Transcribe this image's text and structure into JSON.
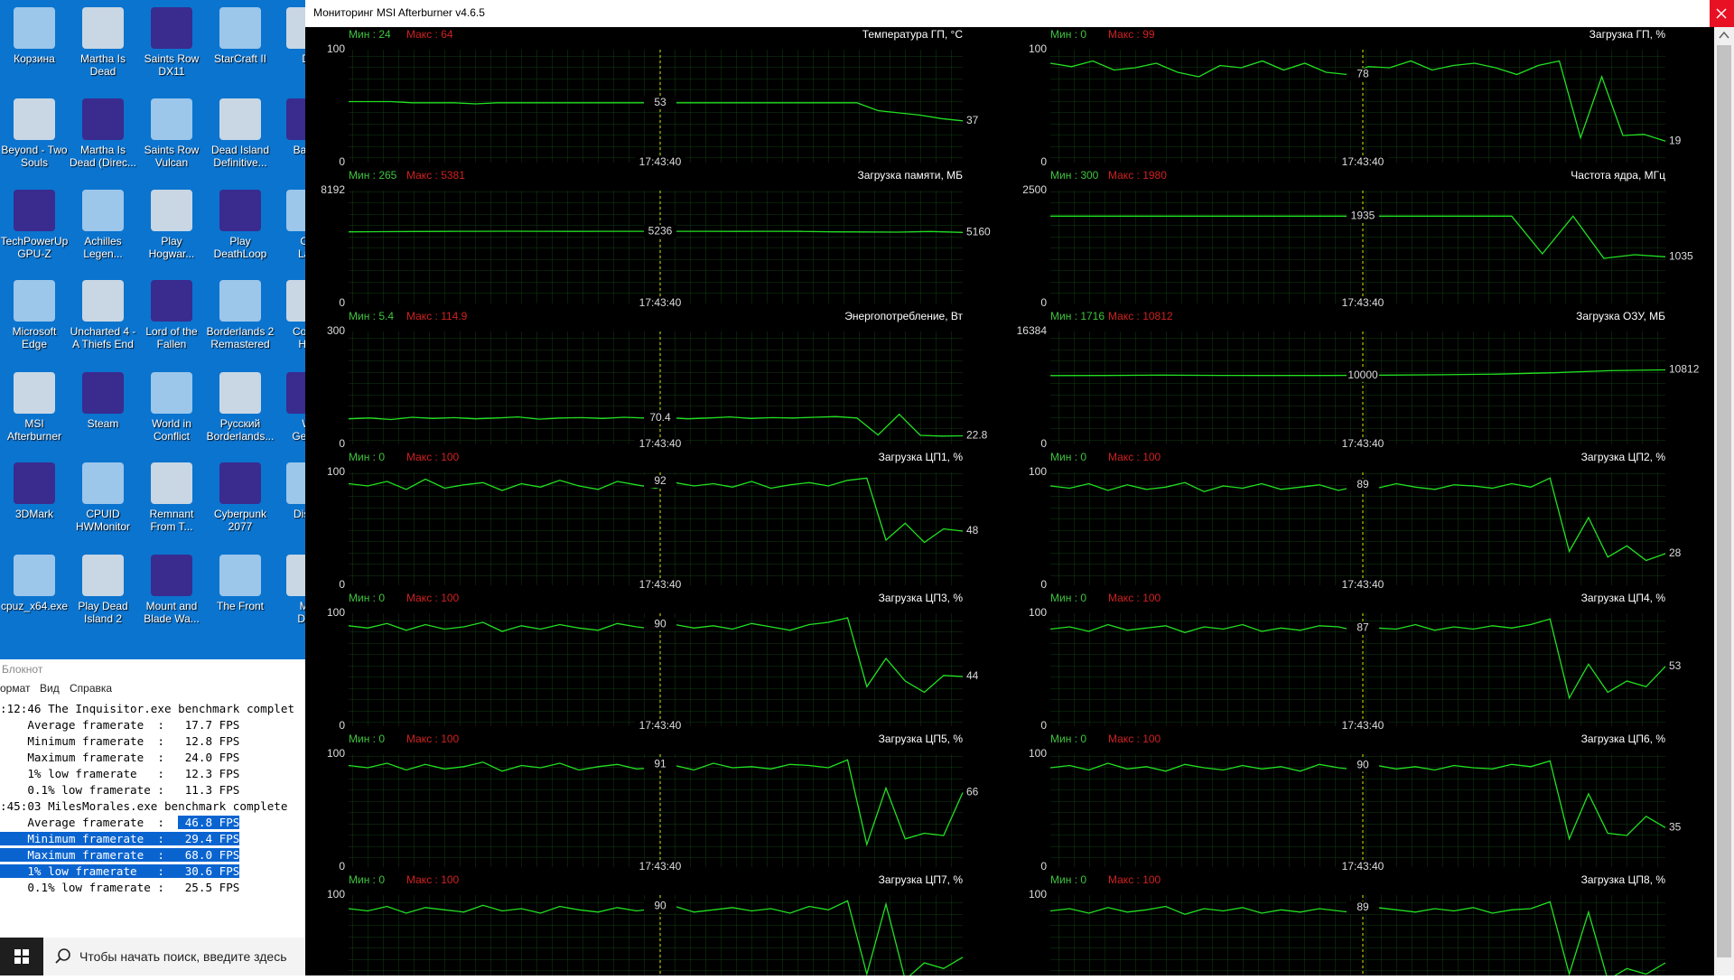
{
  "desktop": {
    "icons": [
      {
        "label": "Корзина"
      },
      {
        "label": "Beyond - Two\nSouls"
      },
      {
        "label": "TechPowerUp\nGPU-Z"
      },
      {
        "label": "Microsoft\nEdge"
      },
      {
        "label": "MSI\nAfterburner"
      },
      {
        "label": "3DMark"
      },
      {
        "label": "cpuz_x64.exe"
      },
      {
        "label": "Martha Is\nDead"
      },
      {
        "label": "Martha Is\nDead (Direc..."
      },
      {
        "label": "Achilles\nLegen..."
      },
      {
        "label": "Uncharted 4 -\nA Thiefs End"
      },
      {
        "label": "Steam"
      },
      {
        "label": "CPUID\nHWMonitor"
      },
      {
        "label": "Play Dead\nIsland 2"
      },
      {
        "label": "Saints Row\nDX11"
      },
      {
        "label": "Saints Row\nVulcan"
      },
      {
        "label": "Play\nHogwar..."
      },
      {
        "label": "Lord of the\nFallen"
      },
      {
        "label": "World in\nConflict"
      },
      {
        "label": "Remnant\nFrom T..."
      },
      {
        "label": "Mount and\nBlade Wa..."
      },
      {
        "label": "StarCraft II"
      },
      {
        "label": "Dead Island\nDefinitive..."
      },
      {
        "label": "Play\nDeathLoop"
      },
      {
        "label": "Borderlands 2\nRemastered"
      },
      {
        "label": "Русский\nBorderlands..."
      },
      {
        "label": "Cyberpunk\n2077"
      },
      {
        "label": "The Front"
      },
      {
        "label": "Di"
      },
      {
        "label": "Baldu"
      },
      {
        "label": "Co\nLau"
      },
      {
        "label": "Comp\nHer"
      },
      {
        "label": "W\nGener"
      },
      {
        "label": "Disint"
      },
      {
        "label": "Ma\nDefi"
      }
    ]
  },
  "notepad": {
    "title": "Блокнот",
    "menu": [
      "ормат",
      "Вид",
      "Справка"
    ],
    "lines": [
      [
        {
          "text": ":12:46 The Inquisitor.exe benchmark complet",
          "selected": false
        }
      ],
      [
        {
          "text": "    Average framerate  :   17.7 FPS",
          "selected": false
        }
      ],
      [
        {
          "text": "    Minimum framerate  :   12.8 FPS",
          "selected": false
        }
      ],
      [
        {
          "text": "    Maximum framerate  :   24.0 FPS",
          "selected": false
        }
      ],
      [
        {
          "text": "    1% low framerate   :   12.3 FPS",
          "selected": false
        }
      ],
      [
        {
          "text": "    0.1% low framerate :   11.3 FPS",
          "selected": false
        }
      ],
      [
        {
          "text": ":45:03 MilesMorales.exe benchmark complete",
          "selected": false
        }
      ],
      [
        {
          "text": "    Average framerate  :  ",
          "selected": false
        },
        {
          "text": " 46.8 FPS",
          "selected": true
        }
      ],
      [
        {
          "text": "    Minimum framerate  :   29.4 FPS",
          "selected": true
        }
      ],
      [
        {
          "text": "    Maximum framerate  :   68.0 FPS",
          "selected": true
        }
      ],
      [
        {
          "text": "    1% low framerate   :   30.6 FPS",
          "selected": true
        }
      ],
      [
        {
          "text": "    0.1% low framerate :   25.5 FPS",
          "selected": false
        }
      ]
    ]
  },
  "taskbar": {
    "search": "Чтобы начать поиск, введите здесь"
  },
  "afterburner": {
    "title": "Мониторинг MSI Afterburner v4.6.5",
    "graphs": [
      {
        "title": "Температура ГП, °C",
        "min": "Мин : 24",
        "max": "Макс : 64",
        "ylim": [
          0,
          100
        ],
        "time": "17:43:40",
        "cursor_value": 53,
        "current": 37,
        "values": [
          54,
          54,
          54,
          53,
          53,
          53,
          52,
          53,
          53,
          53,
          53,
          53,
          53,
          53,
          53,
          53,
          53,
          53,
          53,
          53,
          53,
          53,
          53,
          53,
          53,
          46,
          44,
          42,
          39,
          37
        ]
      },
      {
        "title": "Загрузка ГП, %",
        "min": "Мин : 0",
        "max": "Макс : 99",
        "ylim": [
          0,
          100
        ],
        "time": "17:43:40",
        "cursor_value": 78,
        "current": 19,
        "values": [
          88,
          85,
          90,
          82,
          84,
          88,
          80,
          76,
          86,
          84,
          90,
          82,
          88,
          80,
          78,
          85,
          84,
          90,
          82,
          86,
          88,
          84,
          78,
          86,
          90,
          22,
          76,
          24,
          25,
          19
        ]
      },
      {
        "title": "Загрузка памяти, МБ",
        "min": "Мин : 265",
        "max": "Макс : 5381",
        "ylim": [
          0,
          8192
        ],
        "time": "17:43:40",
        "cursor_value": 5236,
        "current": 5160,
        "values": [
          5200,
          5210,
          5220,
          5230,
          5236,
          5240,
          5236,
          5230,
          5236,
          5236,
          5236,
          5236,
          5230,
          5236,
          5230,
          5200,
          5190,
          5180,
          5220,
          5160
        ]
      },
      {
        "title": "Частота ядра, МГц",
        "min": "Мин : 300",
        "max": "Макс : 1980",
        "ylim": [
          0,
          2500
        ],
        "time": "17:43:40",
        "cursor_value": 1935,
        "current": 1035,
        "values": [
          1935,
          1935,
          1935,
          1935,
          1935,
          1935,
          1935,
          1935,
          1935,
          1935,
          1935,
          1935,
          1935,
          1935,
          1935,
          1935,
          1100,
          1935,
          1000,
          1080,
          1035
        ]
      },
      {
        "title": "Энергопотребление, Вт",
        "min": "Мин : 5.4",
        "max": "Макс : 114.9",
        "ylim": [
          0,
          300
        ],
        "time": "17:43:40",
        "cursor_value": 70.4,
        "current": 22.8,
        "values": [
          68,
          70,
          66,
          72,
          69,
          71,
          68,
          70,
          73,
          67,
          70,
          71,
          69,
          72,
          70,
          71,
          68,
          70,
          73,
          69,
          71,
          70,
          72,
          74,
          70,
          25,
          80,
          24,
          22,
          22.8
        ]
      },
      {
        "title": "Загрузка ОЗУ, МБ",
        "min": "Мин : 1716",
        "max": "Макс : 10812",
        "ylim": [
          0,
          16384
        ],
        "time": "17:43:40",
        "cursor_value": 10000,
        "current": 10812,
        "values": [
          9990,
          10000,
          10050,
          10020,
          10000,
          10000,
          10050,
          10100,
          10200,
          10400,
          10700,
          10812
        ]
      },
      {
        "title": "Загрузка ЦП1, %",
        "min": "Мин : 0",
        "max": "Макс : 100",
        "ylim": [
          0,
          100
        ],
        "time": "17:43:40",
        "cursor_value": 92,
        "current": 48,
        "values": [
          90,
          88,
          92,
          85,
          94,
          86,
          89,
          91,
          84,
          90,
          87,
          93,
          88,
          85,
          92,
          89,
          86,
          91,
          88,
          90,
          87,
          92,
          86,
          89,
          91,
          88,
          93,
          95,
          40,
          55,
          38,
          50,
          48
        ]
      },
      {
        "title": "Загрузка ЦП2, %",
        "min": "Мин : 0",
        "max": "Макс : 100",
        "ylim": [
          0,
          100
        ],
        "time": "17:43:40",
        "cursor_value": 89,
        "current": 28,
        "values": [
          88,
          86,
          90,
          84,
          89,
          85,
          87,
          91,
          83,
          88,
          86,
          90,
          85,
          87,
          89,
          84,
          88,
          86,
          90,
          87,
          85,
          89,
          88,
          86,
          90,
          87,
          95,
          30,
          60,
          25,
          35,
          22,
          28
        ]
      },
      {
        "title": "Загрузка ЦП3, %",
        "min": "Мин : 0",
        "max": "Макс : 100",
        "ylim": [
          0,
          100
        ],
        "time": "17:43:40",
        "cursor_value": 90,
        "current": 44,
        "values": [
          89,
          87,
          91,
          85,
          90,
          86,
          88,
          92,
          84,
          89,
          86,
          90,
          87,
          85,
          91,
          88,
          86,
          90,
          87,
          89,
          86,
          91,
          88,
          85,
          90,
          92,
          96,
          35,
          60,
          40,
          30,
          45,
          44
        ]
      },
      {
        "title": "Загрузка ЦП4, %",
        "min": "Мин : 0",
        "max": "Макс : 100",
        "ylim": [
          0,
          100
        ],
        "time": "17:43:40",
        "cursor_value": 87,
        "current": 53,
        "values": [
          86,
          88,
          84,
          90,
          85,
          87,
          89,
          83,
          88,
          86,
          90,
          84,
          87,
          85,
          89,
          88,
          84,
          87,
          86,
          90,
          85,
          88,
          86,
          89,
          87,
          90,
          95,
          25,
          55,
          30,
          40,
          35,
          53
        ]
      },
      {
        "title": "Загрузка ЦП5, %",
        "min": "Мин : 0",
        "max": "Макс : 100",
        "ylim": [
          0,
          100
        ],
        "time": "17:43:40",
        "cursor_value": 91,
        "current": 66,
        "values": [
          90,
          88,
          92,
          86,
          91,
          87,
          89,
          93,
          85,
          90,
          88,
          92,
          86,
          89,
          91,
          87,
          88,
          90,
          86,
          92,
          88,
          89,
          87,
          91,
          90,
          88,
          95,
          20,
          70,
          25,
          30,
          28,
          66
        ]
      },
      {
        "title": "Загрузка ЦП6, %",
        "min": "Мин : 0",
        "max": "Макс : 100",
        "ylim": [
          0,
          100
        ],
        "time": "17:43:40",
        "cursor_value": 90,
        "current": 35,
        "values": [
          88,
          90,
          86,
          92,
          87,
          89,
          85,
          91,
          88,
          86,
          90,
          87,
          89,
          85,
          91,
          88,
          86,
          90,
          87,
          89,
          86,
          90,
          88,
          87,
          91,
          89,
          94,
          25,
          65,
          30,
          28,
          45,
          35
        ]
      },
      {
        "title": "Загрузка ЦП7, %",
        "min": "Мин : 0",
        "max": "Макс : 100",
        "ylim": [
          0,
          100
        ],
        "time": "17:43:40",
        "cursor_value": 90,
        "values": [
          88,
          86,
          90,
          84,
          89,
          87,
          85,
          91,
          86,
          88,
          84,
          90,
          87,
          85,
          89,
          86,
          88,
          90,
          85,
          87,
          89,
          86,
          88,
          84,
          90,
          87,
          95,
          30,
          92,
          25,
          40,
          35,
          45
        ]
      },
      {
        "title": "Загрузка ЦП8, %",
        "min": "Мин : 0",
        "max": "Макс : 100",
        "ylim": [
          0,
          100
        ],
        "time": "17:43:40",
        "cursor_value": 89,
        "values": [
          86,
          88,
          84,
          89,
          85,
          87,
          90,
          83,
          88,
          86,
          89,
          84,
          87,
          85,
          88,
          86,
          84,
          89,
          87,
          85,
          88,
          86,
          89,
          84,
          87,
          88,
          94,
          30,
          85,
          25,
          35,
          30,
          40
        ]
      }
    ]
  }
}
